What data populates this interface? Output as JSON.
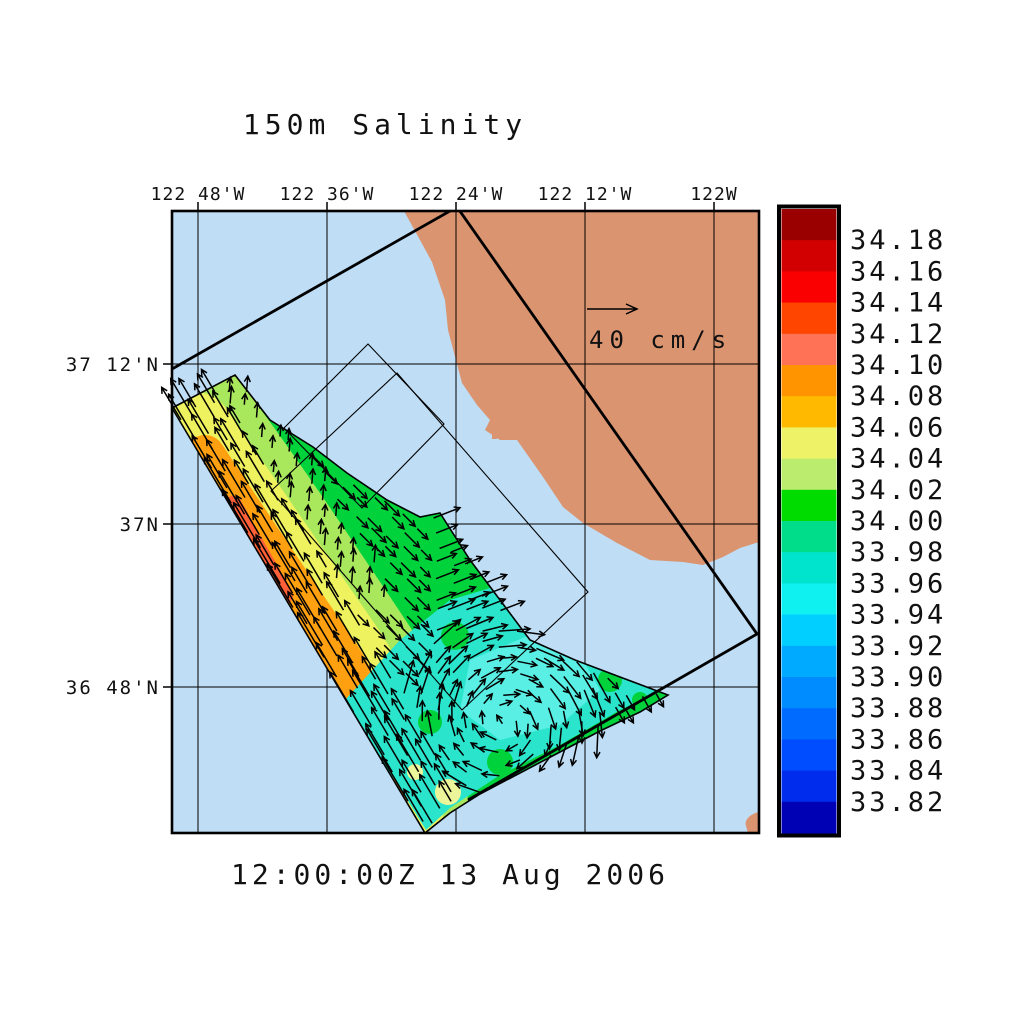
{
  "chart_data": {
    "type": "heatmap",
    "title": "150m Salinity",
    "time_label": "12:00:00Z  13 Aug 2006",
    "variable": "Salinity",
    "depth_level": "150m",
    "x_tick_labels": [
      "122 48'W",
      "122 36'W",
      "122 24'W",
      "122 12'W",
      "122W"
    ],
    "y_tick_labels": [
      "37 12'N",
      "37N",
      "36 48'N"
    ],
    "vector_scale_label": "40 cm/s",
    "vector_scale_value_cm_per_s": 40,
    "legend_position": "right",
    "grid": true,
    "colorbar": {
      "tick_labels": [
        "34.18",
        "34.16",
        "34.14",
        "34.12",
        "34.10",
        "34.08",
        "34.06",
        "34.04",
        "34.02",
        "34.00",
        "33.98",
        "33.96",
        "33.94",
        "33.92",
        "33.90",
        "33.88",
        "33.86",
        "33.84",
        "33.82"
      ],
      "cell_colors_top_to_bottom": [
        "#9B0000",
        "#D20000",
        "#FA0000",
        "#FF4500",
        "#FF7256",
        "#FF9400",
        "#FFBA00",
        "#EEF266",
        "#BCEC6E",
        "#00DC00",
        "#00DD8A",
        "#00E3CD",
        "#0FF0F0",
        "#00CFFF",
        "#00AAFF",
        "#008CFF",
        "#006CFF",
        "#004CFF",
        "#002CEE",
        "#0000B4"
      ],
      "value_range": [
        33.82,
        34.18
      ],
      "value_step": 0.02
    },
    "field_summary": {
      "high_salinity_band": "orange/red band ~34.06-34.14 along northwest model swath edge",
      "low_salinity_eddy": "cyan ~33.92-33.96 clockwise eddy in southeast of swath",
      "background": "green ~33.98-34.02 over rest of swath"
    }
  },
  "colors": {
    "ocean": "#BFDDF5",
    "land": "#DB9470",
    "line": "#000000",
    "swath_green": "#00D23C",
    "swath_yellowgreen": "#A9E85C",
    "swath_yellow": "#EDF25E",
    "swath_orange": "#FFA010",
    "swath_red": "#FF6038",
    "swath_cyan": "#2BE4CC",
    "swath_brightcyan": "#59EFE4",
    "swath_paleyellow": "#EDF59A"
  }
}
